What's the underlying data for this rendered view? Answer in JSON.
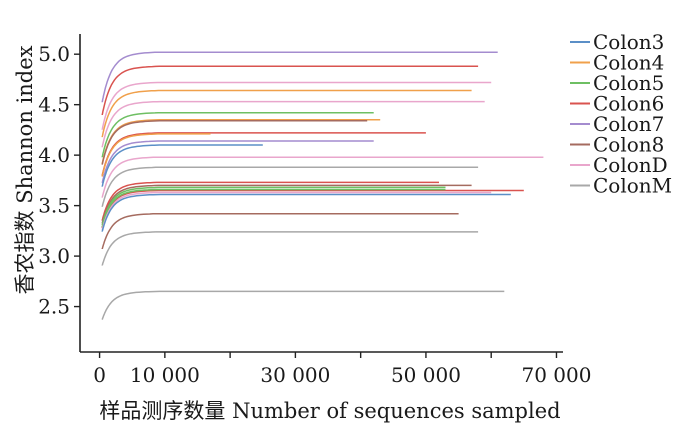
{
  "chart_data": {
    "type": "line",
    "title": "",
    "xlabel": "样品测序数量 Number of sequences sampled",
    "ylabel": "香农指数 Shannon index",
    "xlim": [
      -3000,
      71000
    ],
    "ylim": [
      2.05,
      5.2
    ],
    "xticks": [
      0,
      10000,
      30000,
      50000,
      70000
    ],
    "xtick_labels": [
      "0",
      "10 000",
      "30 000",
      "50 000",
      "70 000"
    ],
    "yticks": [
      2.5,
      3.0,
      3.5,
      4.0,
      4.5,
      5.0
    ],
    "ytick_labels": [
      "2.5",
      "3.0",
      "3.5",
      "4.0",
      "4.5",
      "5.0"
    ],
    "grid": false,
    "legend_position": "right",
    "legend": [
      "Colon3",
      "Colon4",
      "Colon5",
      "Colon6",
      "Colon7",
      "Colon8",
      "ColonD",
      "ColonM"
    ],
    "colors": {
      "Colon3": "#5b8fc7",
      "Colon4": "#f0a04b",
      "Colon5": "#6ebf63",
      "Colon6": "#d9534f",
      "Colon7": "#a48ccf",
      "Colon8": "#a56b5f",
      "ColonD": "#e9a6cc",
      "ColonM": "#a8a8a8"
    },
    "series": [
      {
        "group": "Colon7",
        "final_x": 61000,
        "final_y": 5.02
      },
      {
        "group": "Colon6",
        "final_x": 58000,
        "final_y": 4.88
      },
      {
        "group": "ColonD",
        "final_x": 60000,
        "final_y": 4.72
      },
      {
        "group": "Colon4",
        "final_x": 57000,
        "final_y": 4.64
      },
      {
        "group": "ColonD",
        "final_x": 59000,
        "final_y": 4.53
      },
      {
        "group": "Colon5",
        "final_x": 42000,
        "final_y": 4.42
      },
      {
        "group": "Colon4",
        "final_x": 43000,
        "final_y": 4.35
      },
      {
        "group": "Colon8",
        "final_x": 41000,
        "final_y": 4.34
      },
      {
        "group": "Colon6",
        "final_x": 50000,
        "final_y": 4.22
      },
      {
        "group": "Colon4",
        "final_x": 17000,
        "final_y": 4.21
      },
      {
        "group": "Colon7",
        "final_x": 42000,
        "final_y": 4.14
      },
      {
        "group": "Colon3",
        "final_x": 25000,
        "final_y": 4.1
      },
      {
        "group": "ColonD",
        "final_x": 68000,
        "final_y": 3.98
      },
      {
        "group": "ColonM",
        "final_x": 58000,
        "final_y": 3.88
      },
      {
        "group": "Colon6",
        "final_x": 52000,
        "final_y": 3.73
      },
      {
        "group": "Colon8",
        "final_x": 57000,
        "final_y": 3.7
      },
      {
        "group": "Colon5",
        "final_x": 53000,
        "final_y": 3.68
      },
      {
        "group": "Colon6",
        "final_x": 65000,
        "final_y": 3.65
      },
      {
        "group": "Colon5",
        "final_x": 53000,
        "final_y": 3.66
      },
      {
        "group": "ColonD",
        "final_x": 60000,
        "final_y": 3.63
      },
      {
        "group": "Colon3",
        "final_x": 63000,
        "final_y": 3.61
      },
      {
        "group": "Colon8",
        "final_x": 55000,
        "final_y": 3.42
      },
      {
        "group": "ColonM",
        "final_x": 58000,
        "final_y": 3.24
      },
      {
        "group": "ColonM",
        "final_x": 62000,
        "final_y": 2.65
      }
    ]
  }
}
